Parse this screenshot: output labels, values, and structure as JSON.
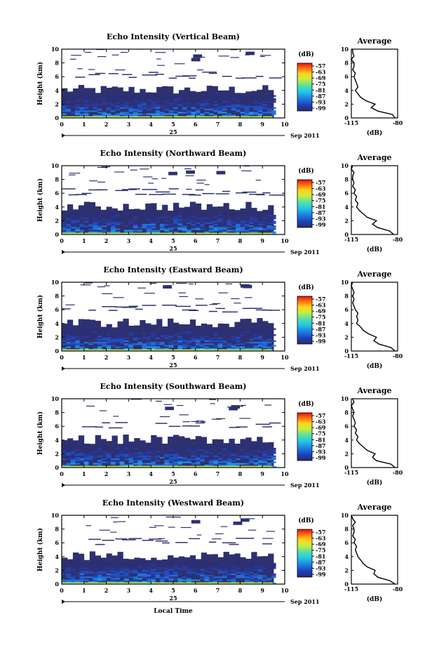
{
  "chart_data": [
    {
      "type": "heatmap",
      "title": "Echo Intensity (Vertical Beam)",
      "ylabel": "Height (km)",
      "x_ticks": [
        0,
        1,
        2,
        3,
        4,
        5,
        6,
        7,
        8,
        9,
        10
      ],
      "y_ticks": [
        0,
        2,
        4,
        6,
        8,
        10
      ],
      "xlim": [
        0,
        10
      ],
      "ylim": [
        0,
        10
      ],
      "date_day": "25",
      "date_month": "Sep 2011",
      "colorbar": {
        "unit": "(dB)",
        "ticks": [
          -57,
          -63,
          -69,
          -75,
          -81,
          -87,
          -93,
          -99
        ]
      },
      "profile": {
        "title": "Average",
        "xlabel": "(dB)",
        "x_ticks": [
          -115,
          -80
        ],
        "heights": [
          0,
          0.5,
          1,
          1.5,
          2,
          2.5,
          3,
          3.5,
          4,
          4.5,
          5,
          5.5,
          6,
          6.5,
          7,
          7.5,
          8,
          8.5,
          9,
          9.5,
          10
        ],
        "values": [
          -82,
          -84,
          -95,
          -100,
          -97,
          -104,
          -108,
          -110,
          -112,
          -110,
          -111,
          -112,
          -113,
          -112,
          -114,
          -113,
          -113,
          -115,
          -113,
          -114,
          -114
        ]
      }
    },
    {
      "type": "heatmap",
      "title": "Echo Intensity (Northward Beam)",
      "ylabel": "Height (km)",
      "x_ticks": [
        0,
        1,
        2,
        3,
        4,
        5,
        6,
        7,
        8,
        9,
        10
      ],
      "y_ticks": [
        0,
        2,
        4,
        6,
        8,
        10
      ],
      "xlim": [
        0,
        10
      ],
      "ylim": [
        0,
        10
      ],
      "date_day": "25",
      "date_month": "Sep 2011",
      "colorbar": {
        "unit": "(dB)",
        "ticks": [
          -57,
          -63,
          -69,
          -75,
          -81,
          -87,
          -93,
          -99
        ]
      },
      "profile": {
        "title": "Average",
        "xlabel": "(dB)",
        "x_ticks": [
          -115,
          -80
        ],
        "heights": [
          0,
          0.5,
          1,
          1.5,
          2,
          2.5,
          3,
          3.5,
          4,
          4.5,
          5,
          5.5,
          6,
          6.5,
          7,
          7.5,
          8,
          8.5,
          9,
          9.5,
          10
        ],
        "values": [
          -83,
          -86,
          -95,
          -99,
          -96,
          -103,
          -106,
          -109,
          -111,
          -110,
          -112,
          -111,
          -113,
          -112,
          -114,
          -113,
          -114,
          -114,
          -113,
          -115,
          -114
        ]
      }
    },
    {
      "type": "heatmap",
      "title": "Echo Intensity (Eastward Beam)",
      "ylabel": "Height (km)",
      "x_ticks": [
        0,
        1,
        2,
        3,
        4,
        5,
        6,
        7,
        8,
        9,
        10
      ],
      "y_ticks": [
        0,
        2,
        4,
        6,
        8,
        10
      ],
      "xlim": [
        0,
        10
      ],
      "ylim": [
        0,
        10
      ],
      "date_day": "25",
      "date_month": "Sep 2011",
      "colorbar": {
        "unit": "(dB)",
        "ticks": [
          -57,
          -63,
          -69,
          -75,
          -81,
          -87,
          -93,
          -99
        ]
      },
      "profile": {
        "title": "Average",
        "xlabel": "(dB)",
        "x_ticks": [
          -115,
          -80
        ],
        "heights": [
          0,
          0.5,
          1,
          1.5,
          2,
          2.5,
          3,
          3.5,
          4,
          4.5,
          5,
          5.5,
          6,
          6.5,
          7,
          7.5,
          8,
          8.5,
          9,
          9.5,
          10
        ],
        "values": [
          -82,
          -85,
          -94,
          -98,
          -96,
          -102,
          -106,
          -108,
          -111,
          -110,
          -111,
          -110,
          -112,
          -113,
          -114,
          -113,
          -114,
          -113,
          -114,
          -115,
          -114
        ]
      }
    },
    {
      "type": "heatmap",
      "title": "Echo Intensity (Southward Beam)",
      "ylabel": "Height (km)",
      "x_ticks": [
        0,
        1,
        2,
        3,
        4,
        5,
        6,
        7,
        8,
        9,
        10
      ],
      "y_ticks": [
        0,
        2,
        4,
        6,
        8,
        10
      ],
      "xlim": [
        0,
        10
      ],
      "ylim": [
        0,
        10
      ],
      "date_day": "25",
      "date_month": "Sep 2011",
      "colorbar": {
        "unit": "(dB)",
        "ticks": [
          -57,
          -63,
          -69,
          -75,
          -81,
          -87,
          -93,
          -99
        ]
      },
      "profile": {
        "title": "Average",
        "xlabel": "(dB)",
        "x_ticks": [
          -115,
          -80
        ],
        "heights": [
          0,
          0.5,
          1,
          1.5,
          2,
          2.5,
          3,
          3.5,
          4,
          4.5,
          5,
          5.5,
          6,
          6.5,
          7,
          7.5,
          8,
          8.5,
          9,
          9.5,
          10
        ],
        "values": [
          -82,
          -85,
          -96,
          -99,
          -97,
          -103,
          -106,
          -109,
          -111,
          -110,
          -112,
          -111,
          -113,
          -112,
          -113,
          -114,
          -113,
          -114,
          -115,
          -113,
          -114
        ]
      }
    },
    {
      "type": "heatmap",
      "title": "Echo Intensity (Westward Beam)",
      "ylabel": "Height (km)",
      "xlabel": "Local Time",
      "x_ticks": [
        0,
        1,
        2,
        3,
        4,
        5,
        6,
        7,
        8,
        9,
        10
      ],
      "y_ticks": [
        0,
        2,
        4,
        6,
        8,
        10
      ],
      "xlim": [
        0,
        10
      ],
      "ylim": [
        0,
        10
      ],
      "date_day": "25",
      "date_month": "Sep 2011",
      "colorbar": {
        "unit": "(dB)",
        "ticks": [
          -57,
          -63,
          -69,
          -75,
          -81,
          -87,
          -93,
          -99
        ]
      },
      "profile": {
        "title": "Average",
        "xlabel": "(dB)",
        "x_ticks": [
          -115,
          -80
        ],
        "heights": [
          0,
          0.5,
          1,
          1.5,
          2,
          2.5,
          3,
          3.5,
          4,
          4.5,
          5,
          5.5,
          6,
          6.5,
          7,
          7.5,
          8,
          8.5,
          9,
          9.5,
          10
        ],
        "values": [
          -82,
          -86,
          -95,
          -98,
          -97,
          -103,
          -106,
          -108,
          -110,
          -111,
          -112,
          -111,
          -113,
          -112,
          -114,
          -113,
          -113,
          -114,
          -112,
          -114,
          -115
        ]
      }
    }
  ]
}
